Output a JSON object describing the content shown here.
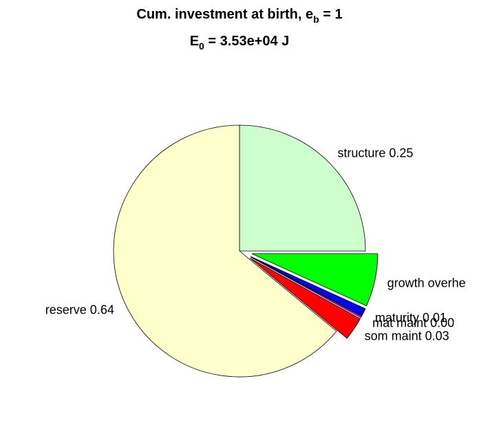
{
  "chart_data": {
    "type": "pie",
    "title": [
      "Cum. investment at birth, e",
      "b",
      " = 1"
    ],
    "subtitle": [
      "E",
      "0",
      " = 3.53e+04 J"
    ],
    "values": [
      0.25,
      0.068,
      0.01,
      0.002,
      0.03,
      0.64
    ],
    "value_labels": [
      "structure 0.25",
      "growth overhe",
      "maturity 0.01",
      "mat maint 0.00",
      "som maint 0.03",
      "reserve 0.64"
    ],
    "colors": [
      "#ccffcc",
      "#00ff00",
      "#0000ff",
      "#ff00ff",
      "#ff0000",
      "#ffffcc"
    ],
    "explode": [
      false,
      true,
      true,
      true,
      true,
      false
    ]
  }
}
